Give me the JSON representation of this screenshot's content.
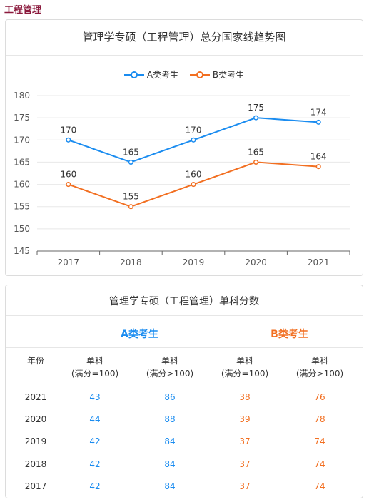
{
  "page_title": "工程管理",
  "chart_data": {
    "type": "line",
    "title": "管理学专硕（工程管理）总分国家线趋势图",
    "categories": [
      "2017",
      "2018",
      "2019",
      "2020",
      "2021"
    ],
    "series": [
      {
        "name": "A类考生",
        "color": "#1a8cf0",
        "values": [
          170,
          165,
          170,
          175,
          174
        ]
      },
      {
        "name": "B类考生",
        "color": "#f26f21",
        "values": [
          160,
          155,
          160,
          165,
          164
        ]
      }
    ],
    "ylim": [
      145,
      180
    ],
    "yticks": [
      145,
      150,
      155,
      160,
      165,
      170,
      175,
      180
    ],
    "xlabel": "",
    "ylabel": "",
    "grid": true,
    "legend": "top"
  },
  "table": {
    "title": "管理学专硕（工程管理）单科分数",
    "group_a": "A类考生",
    "group_b": "B类考生",
    "headers": [
      {
        "line1": "年份",
        "line2": ""
      },
      {
        "line1": "单科",
        "line2": "(满分=100)"
      },
      {
        "line1": "单科",
        "line2": "(满分>100)"
      },
      {
        "line1": "单科",
        "line2": "(满分=100)"
      },
      {
        "line1": "单科",
        "line2": "(满分>100)"
      }
    ],
    "rows": [
      [
        "2021",
        "43",
        "86",
        "38",
        "76"
      ],
      [
        "2020",
        "44",
        "88",
        "39",
        "78"
      ],
      [
        "2019",
        "42",
        "84",
        "37",
        "74"
      ],
      [
        "2018",
        "42",
        "84",
        "37",
        "74"
      ],
      [
        "2017",
        "42",
        "84",
        "37",
        "74"
      ]
    ]
  },
  "colors": {
    "a": "#1a8cf0",
    "b": "#f26f21",
    "title": "#8b1a3d"
  }
}
